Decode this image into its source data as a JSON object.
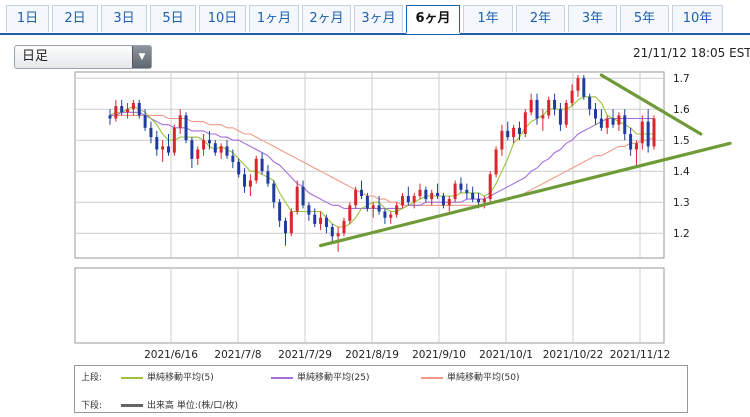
{
  "tabs": [
    {
      "label": "1日",
      "active": false
    },
    {
      "label": "2日",
      "active": false
    },
    {
      "label": "3日",
      "active": false
    },
    {
      "label": "5日",
      "active": false
    },
    {
      "label": "10日",
      "active": false
    },
    {
      "label": "1ヶ月",
      "active": false
    },
    {
      "label": "2ヶ月",
      "active": false
    },
    {
      "label": "3ヶ月",
      "active": false
    },
    {
      "label": "6ヶ月",
      "active": true
    },
    {
      "label": "1年",
      "active": false
    },
    {
      "label": "2年",
      "active": false
    },
    {
      "label": "3年",
      "active": false
    },
    {
      "label": "5年",
      "active": false
    },
    {
      "label": "10年",
      "active": false
    }
  ],
  "toolbar": {
    "period_value": "日足"
  },
  "timestamp": "21/11/12 18:05 EST",
  "colors": {
    "up": "#d9252b",
    "down": "#1d3c9e",
    "ma5": "#9cc43c",
    "ma25": "#a46fd8",
    "ma50": "#f09a86",
    "trendline": "#6f9a38",
    "volume": "#666666",
    "tab_accent": "#1f5fae"
  },
  "legend": {
    "upper_label": "上段:",
    "lower_label": "下段:",
    "ma5": "単純移動平均(5)",
    "ma25": "単純移動平均(25)",
    "ma50": "単純移動平均(50)",
    "volume": "出来高 単位:(株/口/枚)"
  },
  "chart_data": {
    "type": "candlestick",
    "x_ticks": [
      "2021/6/16",
      "2021/7/8",
      "2021/7/29",
      "2021/8/19",
      "2021/9/10",
      "2021/10/1",
      "2021/10/22",
      "2021/11/12"
    ],
    "y_ticks": [
      "1.2",
      "1.3",
      "1.4",
      "1.5",
      "1.6",
      "1.7"
    ],
    "ylim": [
      1.12,
      1.72
    ],
    "grid": true,
    "candles": [
      [
        1.58,
        1.6,
        1.55,
        1.57
      ],
      [
        1.57,
        1.63,
        1.56,
        1.61
      ],
      [
        1.61,
        1.63,
        1.58,
        1.59
      ],
      [
        1.59,
        1.62,
        1.57,
        1.6
      ],
      [
        1.6,
        1.63,
        1.58,
        1.62
      ],
      [
        1.62,
        1.63,
        1.57,
        1.58
      ],
      [
        1.58,
        1.6,
        1.53,
        1.54
      ],
      [
        1.54,
        1.56,
        1.49,
        1.51
      ],
      [
        1.51,
        1.53,
        1.45,
        1.47
      ],
      [
        1.47,
        1.5,
        1.43,
        1.48
      ],
      [
        1.48,
        1.52,
        1.45,
        1.46
      ],
      [
        1.46,
        1.55,
        1.45,
        1.54
      ],
      [
        1.54,
        1.6,
        1.52,
        1.58
      ],
      [
        1.58,
        1.59,
        1.49,
        1.5
      ],
      [
        1.5,
        1.51,
        1.41,
        1.44
      ],
      [
        1.44,
        1.48,
        1.42,
        1.47
      ],
      [
        1.47,
        1.52,
        1.45,
        1.5
      ],
      [
        1.5,
        1.53,
        1.47,
        1.49
      ],
      [
        1.49,
        1.5,
        1.45,
        1.46
      ],
      [
        1.46,
        1.49,
        1.44,
        1.48
      ],
      [
        1.48,
        1.5,
        1.44,
        1.45
      ],
      [
        1.45,
        1.47,
        1.41,
        1.43
      ],
      [
        1.43,
        1.44,
        1.38,
        1.39
      ],
      [
        1.39,
        1.41,
        1.33,
        1.35
      ],
      [
        1.35,
        1.39,
        1.32,
        1.37
      ],
      [
        1.37,
        1.45,
        1.36,
        1.44
      ],
      [
        1.44,
        1.46,
        1.39,
        1.4
      ],
      [
        1.4,
        1.42,
        1.35,
        1.36
      ],
      [
        1.36,
        1.37,
        1.28,
        1.3
      ],
      [
        1.3,
        1.31,
        1.22,
        1.24
      ],
      [
        1.24,
        1.25,
        1.16,
        1.2
      ],
      [
        1.2,
        1.28,
        1.19,
        1.27
      ],
      [
        1.27,
        1.37,
        1.26,
        1.35
      ],
      [
        1.35,
        1.37,
        1.28,
        1.29
      ],
      [
        1.29,
        1.3,
        1.24,
        1.26
      ],
      [
        1.26,
        1.28,
        1.22,
        1.23
      ],
      [
        1.23,
        1.27,
        1.21,
        1.25
      ],
      [
        1.25,
        1.26,
        1.2,
        1.22
      ],
      [
        1.22,
        1.23,
        1.17,
        1.19
      ],
      [
        1.19,
        1.22,
        1.14,
        1.2
      ],
      [
        1.2,
        1.25,
        1.19,
        1.24
      ],
      [
        1.24,
        1.3,
        1.23,
        1.29
      ],
      [
        1.29,
        1.35,
        1.28,
        1.34
      ],
      [
        1.34,
        1.37,
        1.31,
        1.32
      ],
      [
        1.32,
        1.33,
        1.27,
        1.28
      ],
      [
        1.28,
        1.3,
        1.25,
        1.29
      ],
      [
        1.29,
        1.32,
        1.26,
        1.27
      ],
      [
        1.27,
        1.28,
        1.23,
        1.25
      ],
      [
        1.25,
        1.27,
        1.23,
        1.26
      ],
      [
        1.26,
        1.3,
        1.25,
        1.29
      ],
      [
        1.29,
        1.33,
        1.28,
        1.32
      ],
      [
        1.32,
        1.35,
        1.29,
        1.3
      ],
      [
        1.3,
        1.33,
        1.28,
        1.32
      ],
      [
        1.32,
        1.36,
        1.31,
        1.34
      ],
      [
        1.34,
        1.35,
        1.3,
        1.31
      ],
      [
        1.31,
        1.34,
        1.29,
        1.33
      ],
      [
        1.33,
        1.36,
        1.31,
        1.32
      ],
      [
        1.32,
        1.33,
        1.28,
        1.29
      ],
      [
        1.29,
        1.32,
        1.27,
        1.31
      ],
      [
        1.31,
        1.37,
        1.3,
        1.36
      ],
      [
        1.36,
        1.38,
        1.33,
        1.34
      ],
      [
        1.34,
        1.36,
        1.31,
        1.33
      ],
      [
        1.33,
        1.35,
        1.3,
        1.31
      ],
      [
        1.31,
        1.33,
        1.28,
        1.3
      ],
      [
        1.3,
        1.32,
        1.28,
        1.31
      ],
      [
        1.31,
        1.4,
        1.3,
        1.39
      ],
      [
        1.39,
        1.48,
        1.38,
        1.47
      ],
      [
        1.47,
        1.55,
        1.45,
        1.53
      ],
      [
        1.53,
        1.56,
        1.5,
        1.51
      ],
      [
        1.51,
        1.55,
        1.49,
        1.54
      ],
      [
        1.54,
        1.56,
        1.5,
        1.52
      ],
      [
        1.52,
        1.6,
        1.51,
        1.59
      ],
      [
        1.59,
        1.65,
        1.58,
        1.63
      ],
      [
        1.63,
        1.65,
        1.55,
        1.57
      ],
      [
        1.57,
        1.6,
        1.53,
        1.58
      ],
      [
        1.58,
        1.64,
        1.57,
        1.63
      ],
      [
        1.63,
        1.65,
        1.58,
        1.6
      ],
      [
        1.6,
        1.62,
        1.53,
        1.55
      ],
      [
        1.55,
        1.63,
        1.54,
        1.62
      ],
      [
        1.62,
        1.68,
        1.61,
        1.66
      ],
      [
        1.66,
        1.71,
        1.64,
        1.7
      ],
      [
        1.7,
        1.71,
        1.63,
        1.64
      ],
      [
        1.64,
        1.65,
        1.58,
        1.6
      ],
      [
        1.6,
        1.62,
        1.55,
        1.57
      ],
      [
        1.57,
        1.6,
        1.53,
        1.54
      ],
      [
        1.54,
        1.58,
        1.52,
        1.57
      ],
      [
        1.57,
        1.6,
        1.54,
        1.55
      ],
      [
        1.55,
        1.59,
        1.53,
        1.58
      ],
      [
        1.58,
        1.6,
        1.5,
        1.52
      ],
      [
        1.52,
        1.54,
        1.45,
        1.47
      ],
      [
        1.47,
        1.5,
        1.42,
        1.49
      ],
      [
        1.49,
        1.58,
        1.47,
        1.56
      ],
      [
        1.56,
        1.6,
        1.46,
        1.48
      ],
      [
        1.48,
        1.58,
        1.47,
        1.57
      ]
    ],
    "ma5": [
      1.58,
      1.59,
      1.59,
      1.6,
      1.61,
      1.6,
      1.59,
      1.57,
      1.55,
      1.52,
      1.5,
      1.5,
      1.51,
      1.51,
      1.51,
      1.51,
      1.5,
      1.48,
      1.47,
      1.48,
      1.47,
      1.46,
      1.44,
      1.42,
      1.4,
      1.4,
      1.39,
      1.38,
      1.37,
      1.33,
      1.3,
      1.27,
      1.27,
      1.27,
      1.27,
      1.27,
      1.27,
      1.25,
      1.23,
      1.22,
      1.22,
      1.23,
      1.25,
      1.28,
      1.29,
      1.3,
      1.3,
      1.28,
      1.27,
      1.27,
      1.28,
      1.29,
      1.3,
      1.31,
      1.32,
      1.32,
      1.32,
      1.32,
      1.32,
      1.32,
      1.33,
      1.33,
      1.33,
      1.33,
      1.32,
      1.33,
      1.36,
      1.4,
      1.44,
      1.49,
      1.51,
      1.54,
      1.56,
      1.57,
      1.58,
      1.6,
      1.6,
      1.6,
      1.6,
      1.61,
      1.63,
      1.64,
      1.64,
      1.64,
      1.62,
      1.58,
      1.57,
      1.56,
      1.55,
      1.54,
      1.52,
      1.52,
      1.52,
      1.52
    ],
    "ma25": [
      1.58,
      1.58,
      1.59,
      1.59,
      1.59,
      1.59,
      1.58,
      1.57,
      1.56,
      1.55,
      1.55,
      1.54,
      1.54,
      1.54,
      1.53,
      1.53,
      1.53,
      1.52,
      1.52,
      1.51,
      1.51,
      1.5,
      1.5,
      1.49,
      1.48,
      1.47,
      1.46,
      1.45,
      1.43,
      1.42,
      1.4,
      1.38,
      1.36,
      1.35,
      1.33,
      1.32,
      1.31,
      1.3,
      1.29,
      1.29,
      1.28,
      1.28,
      1.28,
      1.28,
      1.28,
      1.28,
      1.28,
      1.28,
      1.28,
      1.28,
      1.28,
      1.29,
      1.29,
      1.29,
      1.3,
      1.3,
      1.3,
      1.3,
      1.3,
      1.3,
      1.3,
      1.31,
      1.31,
      1.31,
      1.31,
      1.32,
      1.33,
      1.34,
      1.35,
      1.36,
      1.37,
      1.38,
      1.4,
      1.41,
      1.43,
      1.44,
      1.46,
      1.47,
      1.49,
      1.5,
      1.52,
      1.53,
      1.54,
      1.55,
      1.56,
      1.57,
      1.57,
      1.57,
      1.57,
      1.57,
      1.57,
      1.57,
      1.57,
      1.57
    ],
    "ma50": [
      1.58,
      1.58,
      1.58,
      1.58,
      1.58,
      1.58,
      1.58,
      1.58,
      1.58,
      1.58,
      1.57,
      1.57,
      1.57,
      1.57,
      1.56,
      1.56,
      1.56,
      1.55,
      1.55,
      1.55,
      1.54,
      1.54,
      1.53,
      1.52,
      1.52,
      1.51,
      1.5,
      1.49,
      1.48,
      1.47,
      1.46,
      1.45,
      1.44,
      1.43,
      1.42,
      1.41,
      1.4,
      1.39,
      1.38,
      1.37,
      1.36,
      1.35,
      1.34,
      1.33,
      1.32,
      1.32,
      1.31,
      1.31,
      1.3,
      1.3,
      1.29,
      1.29,
      1.29,
      1.29,
      1.29,
      1.29,
      1.29,
      1.29,
      1.29,
      1.29,
      1.29,
      1.29,
      1.29,
      1.29,
      1.29,
      1.3,
      1.3,
      1.31,
      1.31,
      1.32,
      1.32,
      1.33,
      1.34,
      1.35,
      1.36,
      1.37,
      1.38,
      1.39,
      1.4,
      1.41,
      1.42,
      1.43,
      1.44,
      1.45,
      1.45,
      1.46,
      1.47,
      1.48,
      1.48,
      1.49,
      1.49,
      1.5,
      1.5,
      1.51
    ],
    "trendlines": [
      {
        "from": [
          36,
          1.16
        ],
        "to": [
          106,
          1.49
        ]
      },
      {
        "from": [
          84,
          1.71
        ],
        "to": [
          101,
          1.52
        ]
      }
    ],
    "volume": []
  }
}
